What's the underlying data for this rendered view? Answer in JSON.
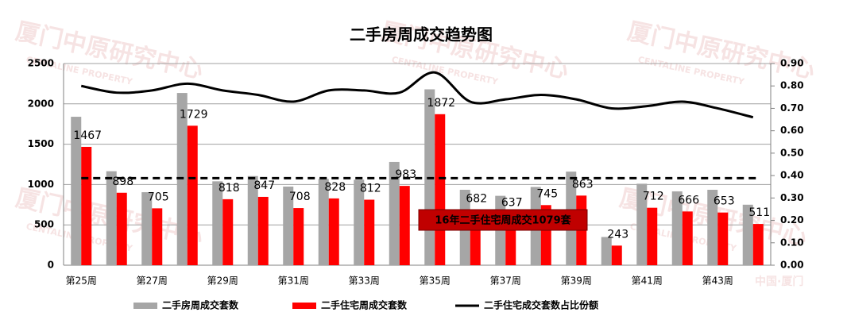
{
  "chart_data": {
    "type": "bar_line",
    "title": "二手房周成交趋势图",
    "watermark": "厦门中原研究中心",
    "watermark_sub": "CENTALINE PROPERTY",
    "watermark_place": "中国·厦门",
    "categories": [
      "第25周",
      null,
      "第27周",
      null,
      "第29周",
      null,
      "第31周",
      null,
      "第33周",
      null,
      "第35周",
      null,
      "第37周",
      null,
      "第39周",
      null,
      "第41周",
      null,
      "第43周",
      null
    ],
    "series": [
      {
        "name": "二手房周成交套数",
        "color": "#a6a6a6",
        "kind": "bar",
        "values": [
          1840,
          1165,
          905,
          2135,
          1040,
          1105,
          975,
          1070,
          1060,
          1280,
          2180,
          935,
          860,
          970,
          1160,
          350,
          1010,
          915,
          935,
          750
        ]
      },
      {
        "name": "二手住宅周成交套数",
        "color": "#ff0000",
        "kind": "bar",
        "show_labels": true,
        "values": [
          1467,
          898,
          705,
          1729,
          818,
          847,
          708,
          828,
          812,
          983,
          1872,
          682,
          637,
          745,
          863,
          243,
          712,
          666,
          653,
          511
        ]
      },
      {
        "name": "二手住宅成交套数占比份额",
        "color": "#000000",
        "kind": "line",
        "axis": "y2",
        "values": [
          0.8,
          0.77,
          0.78,
          0.81,
          0.78,
          0.76,
          0.73,
          0.78,
          0.78,
          0.77,
          0.86,
          0.73,
          0.74,
          0.76,
          0.74,
          0.7,
          0.71,
          0.73,
          0.7,
          0.66
        ]
      }
    ],
    "reference_line": {
      "value": 1079,
      "label": "16年二手住宅周成交1079套",
      "color": "#c00000"
    },
    "ylim": [
      0,
      2500
    ],
    "yticks": [
      0,
      500,
      1000,
      1500,
      2000,
      2500
    ],
    "y2lim": [
      0,
      0.9
    ],
    "y2ticks": [
      {
        "value": 0,
        "label": "0.00"
      },
      {
        "value": 0.1,
        "label": "0.10"
      },
      {
        "value": 0.2,
        "label": "0.20"
      },
      {
        "value": 0.3,
        "label": "0.30"
      },
      {
        "value": 0.4,
        "label": "0.40"
      },
      {
        "value": 0.5,
        "label": "0.50"
      },
      {
        "value": 0.6,
        "label": "0.60"
      },
      {
        "value": 0.7,
        "label": "0.70"
      },
      {
        "value": 0.8,
        "label": "0.80"
      },
      {
        "value": 0.9,
        "label": "0.90"
      }
    ],
    "grid": true
  }
}
